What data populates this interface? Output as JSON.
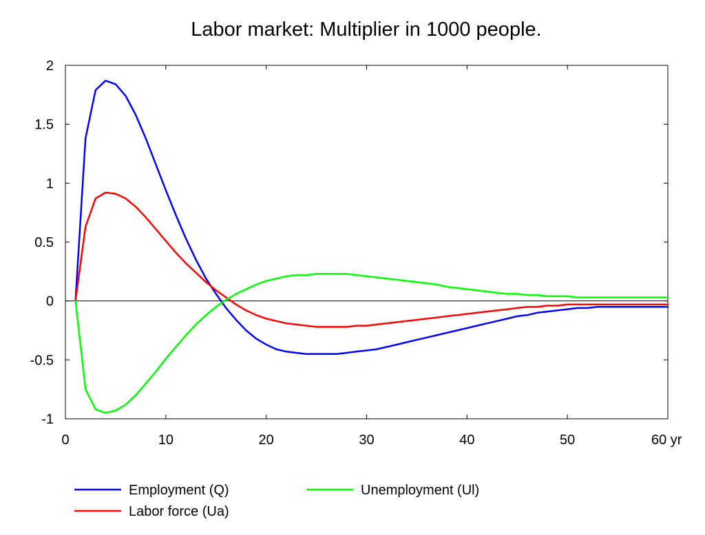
{
  "chart_data": {
    "type": "line",
    "title": "Labor market: Multiplier in 1000 people.",
    "xlabel": "",
    "ylabel": "",
    "x_unit": "yr",
    "xlim": [
      0,
      60
    ],
    "ylim": [
      -1,
      2
    ],
    "xticks": [
      0,
      10,
      20,
      30,
      40,
      50,
      60
    ],
    "xtick_labels": [
      "0",
      "10",
      "20",
      "30",
      "40",
      "50",
      "60 yr"
    ],
    "yticks": [
      -1,
      -0.5,
      0,
      0.5,
      1,
      1.5,
      2
    ],
    "ytick_labels": [
      "-1",
      "-0.5",
      "0",
      "0.5",
      "1",
      "1.5",
      "2"
    ],
    "grid": false,
    "zero_line": true,
    "legend_position": "bottom",
    "x": [
      1,
      2,
      3,
      4,
      5,
      6,
      7,
      8,
      9,
      10,
      11,
      12,
      13,
      14,
      15,
      16,
      17,
      18,
      19,
      20,
      21,
      22,
      23,
      24,
      25,
      26,
      27,
      28,
      29,
      30,
      31,
      32,
      33,
      34,
      35,
      36,
      37,
      38,
      39,
      40,
      41,
      42,
      43,
      44,
      45,
      46,
      47,
      48,
      49,
      50,
      51,
      52,
      53,
      54,
      55,
      56,
      57,
      58,
      59,
      60
    ],
    "series": [
      {
        "name": "Employment (Q)",
        "color": "#0000ff",
        "values": [
          0,
          1.38,
          1.79,
          1.87,
          1.84,
          1.74,
          1.58,
          1.38,
          1.16,
          0.94,
          0.73,
          0.53,
          0.35,
          0.19,
          0.06,
          -0.06,
          -0.16,
          -0.25,
          -0.32,
          -0.37,
          -0.41,
          -0.43,
          -0.44,
          -0.45,
          -0.45,
          -0.45,
          -0.45,
          -0.44,
          -0.43,
          -0.42,
          -0.41,
          -0.39,
          -0.37,
          -0.35,
          -0.33,
          -0.31,
          -0.29,
          -0.27,
          -0.25,
          -0.23,
          -0.21,
          -0.19,
          -0.17,
          -0.15,
          -0.13,
          -0.12,
          -0.1,
          -0.09,
          -0.08,
          -0.07,
          -0.06,
          -0.06,
          -0.05,
          -0.05,
          -0.05,
          -0.05,
          -0.05,
          -0.05,
          -0.05,
          -0.05
        ]
      },
      {
        "name": "Labor force (Ua)",
        "color": "#ff0000",
        "values": [
          0,
          0.63,
          0.87,
          0.92,
          0.91,
          0.87,
          0.8,
          0.71,
          0.61,
          0.51,
          0.41,
          0.32,
          0.24,
          0.16,
          0.09,
          0.03,
          -0.03,
          -0.08,
          -0.12,
          -0.15,
          -0.17,
          -0.19,
          -0.2,
          -0.21,
          -0.22,
          -0.22,
          -0.22,
          -0.22,
          -0.21,
          -0.21,
          -0.2,
          -0.19,
          -0.18,
          -0.17,
          -0.16,
          -0.15,
          -0.14,
          -0.13,
          -0.12,
          -0.11,
          -0.1,
          -0.09,
          -0.08,
          -0.07,
          -0.06,
          -0.05,
          -0.05,
          -0.04,
          -0.04,
          -0.03,
          -0.03,
          -0.03,
          -0.03,
          -0.03,
          -0.03,
          -0.03,
          -0.03,
          -0.03,
          -0.03,
          -0.03
        ]
      },
      {
        "name": "Unemployment (Ul)",
        "color": "#00ff00",
        "values": [
          0,
          -0.75,
          -0.92,
          -0.95,
          -0.93,
          -0.88,
          -0.8,
          -0.7,
          -0.6,
          -0.49,
          -0.39,
          -0.29,
          -0.2,
          -0.12,
          -0.05,
          0.01,
          0.06,
          0.1,
          0.14,
          0.17,
          0.19,
          0.21,
          0.22,
          0.22,
          0.23,
          0.23,
          0.23,
          0.23,
          0.22,
          0.21,
          0.2,
          0.19,
          0.18,
          0.17,
          0.16,
          0.15,
          0.14,
          0.12,
          0.11,
          0.1,
          0.09,
          0.08,
          0.07,
          0.06,
          0.06,
          0.05,
          0.05,
          0.04,
          0.04,
          0.04,
          0.03,
          0.03,
          0.03,
          0.03,
          0.03,
          0.03,
          0.03,
          0.03,
          0.03,
          0.03
        ]
      }
    ]
  }
}
